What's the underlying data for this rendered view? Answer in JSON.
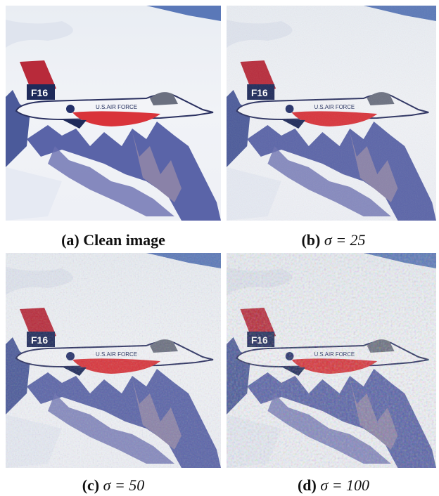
{
  "panels": [
    {
      "label": "(a)",
      "text": "Clean image"
    },
    {
      "label": "(b)",
      "text": "σ = 25"
    },
    {
      "label": "(c)",
      "text": "σ = 50"
    },
    {
      "label": "(d)",
      "text": "σ = 100"
    }
  ]
}
